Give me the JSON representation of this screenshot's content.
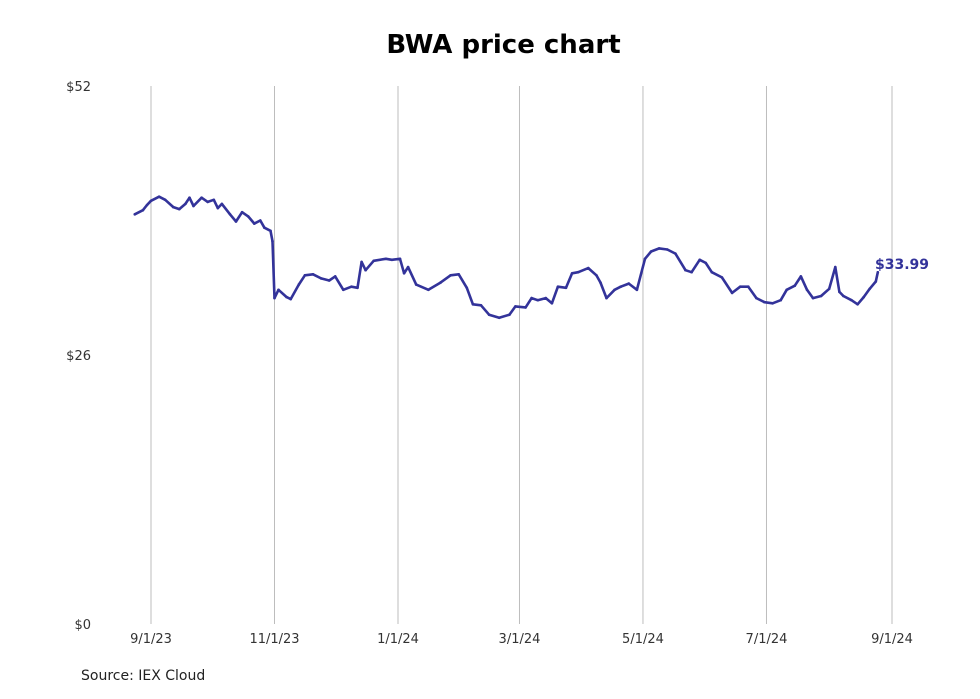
{
  "chart_data": {
    "type": "line",
    "title": "BWA price chart",
    "xlabel": "",
    "ylabel": "",
    "source": "Source: IEX Cloud",
    "x_ticks": [
      "9/1/23",
      "11/1/23",
      "1/1/24",
      "3/1/24",
      "5/1/24",
      "7/1/24",
      "9/1/24"
    ],
    "y_ticks": [
      "$0",
      "$26",
      "$52"
    ],
    "ylim": [
      0,
      52
    ],
    "grid": "vertical",
    "last_label": "$33.99",
    "series": [
      {
        "color": "#33339a",
        "points": [
          [
            "2023-08-24",
            39.6
          ],
          [
            "2023-08-28",
            40.0
          ],
          [
            "2023-08-30",
            40.5
          ],
          [
            "2023-09-01",
            40.9
          ],
          [
            "2023-09-05",
            41.3
          ],
          [
            "2023-09-08",
            41.0
          ],
          [
            "2023-09-12",
            40.3
          ],
          [
            "2023-09-15",
            40.1
          ],
          [
            "2023-09-18",
            40.6
          ],
          [
            "2023-09-20",
            41.2
          ],
          [
            "2023-09-22",
            40.4
          ],
          [
            "2023-09-26",
            41.2
          ],
          [
            "2023-09-29",
            40.8
          ],
          [
            "2023-10-02",
            41.0
          ],
          [
            "2023-10-04",
            40.2
          ],
          [
            "2023-10-06",
            40.6
          ],
          [
            "2023-10-10",
            39.6
          ],
          [
            "2023-10-13",
            38.9
          ],
          [
            "2023-10-16",
            39.8
          ],
          [
            "2023-10-19",
            39.4
          ],
          [
            "2023-10-22",
            38.7
          ],
          [
            "2023-10-25",
            39.0
          ],
          [
            "2023-10-27",
            38.3
          ],
          [
            "2023-10-30",
            38.0
          ],
          [
            "2023-10-31",
            37.0
          ],
          [
            "2023-11-01",
            31.5
          ],
          [
            "2023-11-03",
            32.3
          ],
          [
            "2023-11-07",
            31.6
          ],
          [
            "2023-11-09",
            31.4
          ],
          [
            "2023-11-13",
            32.8
          ],
          [
            "2023-11-16",
            33.7
          ],
          [
            "2023-11-20",
            33.8
          ],
          [
            "2023-11-24",
            33.4
          ],
          [
            "2023-11-28",
            33.2
          ],
          [
            "2023-12-01",
            33.6
          ],
          [
            "2023-12-05",
            32.3
          ],
          [
            "2023-12-09",
            32.6
          ],
          [
            "2023-12-12",
            32.5
          ],
          [
            "2023-12-14",
            35.0
          ],
          [
            "2023-12-16",
            34.2
          ],
          [
            "2023-12-20",
            35.1
          ],
          [
            "2023-12-26",
            35.3
          ],
          [
            "2023-12-29",
            35.2
          ],
          [
            "2024-01-02",
            35.3
          ],
          [
            "2024-01-04",
            33.9
          ],
          [
            "2024-01-06",
            34.5
          ],
          [
            "2024-01-10",
            32.8
          ],
          [
            "2024-01-16",
            32.3
          ],
          [
            "2024-01-22",
            33.0
          ],
          [
            "2024-01-27",
            33.7
          ],
          [
            "2024-01-31",
            33.8
          ],
          [
            "2024-02-04",
            32.5
          ],
          [
            "2024-02-07",
            30.9
          ],
          [
            "2024-02-11",
            30.8
          ],
          [
            "2024-02-15",
            29.9
          ],
          [
            "2024-02-20",
            29.6
          ],
          [
            "2024-02-25",
            29.9
          ],
          [
            "2024-02-28",
            30.7
          ],
          [
            "2024-03-04",
            30.6
          ],
          [
            "2024-03-07",
            31.5
          ],
          [
            "2024-03-10",
            31.3
          ],
          [
            "2024-03-14",
            31.5
          ],
          [
            "2024-03-17",
            31.0
          ],
          [
            "2024-03-20",
            32.6
          ],
          [
            "2024-03-24",
            32.5
          ],
          [
            "2024-03-27",
            33.9
          ],
          [
            "2024-03-30",
            34.0
          ],
          [
            "2024-04-04",
            34.4
          ],
          [
            "2024-04-08",
            33.7
          ],
          [
            "2024-04-10",
            33.0
          ],
          [
            "2024-04-13",
            31.5
          ],
          [
            "2024-04-17",
            32.3
          ],
          [
            "2024-04-20",
            32.6
          ],
          [
            "2024-04-24",
            32.9
          ],
          [
            "2024-04-28",
            32.3
          ],
          [
            "2024-05-02",
            35.3
          ],
          [
            "2024-05-05",
            36.0
          ],
          [
            "2024-05-09",
            36.3
          ],
          [
            "2024-05-13",
            36.2
          ],
          [
            "2024-05-17",
            35.8
          ],
          [
            "2024-05-22",
            34.2
          ],
          [
            "2024-05-25",
            34.0
          ],
          [
            "2024-05-29",
            35.2
          ],
          [
            "2024-06-01",
            34.9
          ],
          [
            "2024-06-04",
            34.0
          ],
          [
            "2024-06-09",
            33.5
          ],
          [
            "2024-06-14",
            32.0
          ],
          [
            "2024-06-18",
            32.6
          ],
          [
            "2024-06-22",
            32.6
          ],
          [
            "2024-06-26",
            31.5
          ],
          [
            "2024-06-30",
            31.1
          ],
          [
            "2024-07-04",
            31.0
          ],
          [
            "2024-07-08",
            31.3
          ],
          [
            "2024-07-11",
            32.3
          ],
          [
            "2024-07-15",
            32.7
          ],
          [
            "2024-07-18",
            33.6
          ],
          [
            "2024-07-21",
            32.3
          ],
          [
            "2024-07-24",
            31.5
          ],
          [
            "2024-07-28",
            31.7
          ],
          [
            "2024-08-01",
            32.4
          ],
          [
            "2024-08-04",
            34.5
          ],
          [
            "2024-08-06",
            32.1
          ],
          [
            "2024-08-08",
            31.7
          ],
          [
            "2024-08-12",
            31.3
          ],
          [
            "2024-08-15",
            30.9
          ],
          [
            "2024-08-18",
            31.6
          ],
          [
            "2024-08-21",
            32.4
          ],
          [
            "2024-08-24",
            33.1
          ],
          [
            "2024-08-25",
            33.99
          ]
        ]
      }
    ]
  }
}
